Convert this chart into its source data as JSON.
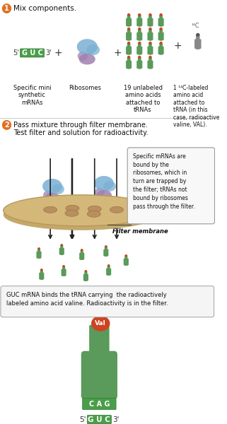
{
  "bg_color": "#ffffff",
  "step1_text": "Mix components.",
  "step2_text": "Pass mixture through filter membrane.\nTest filter and solution for radioactivity.",
  "label1": "Specific mini\nsynthetic\nmRNAs",
  "label2": "Ribosomes",
  "label3": "19 unlabeled\namino acids\nattached to\ntRNAs",
  "label4": "1 ¹⁴C-labeled\namino acid\nattached to\ntRNA (in this\ncase, radioactive\nvaline, VAL).",
  "callout_text": "Specific mRNAs are\nbound by the\nribosomes, which in\nturn are trapped by\nthe filter; tRNAs not\nbound by ribosomes\npass through the filter.",
  "filter_label": "Filter membrane",
  "bottom_text": "GUC mRNA binds the tRNA carrying  the radioactively\nlabeled amino acid valine. Radioactivity is in the filter.",
  "guc_bg": "#4a9e4a",
  "trna_green": "#6aaa6a",
  "trna_body_green": "#5a9a5a",
  "ribosome_blue": "#7ab0d4",
  "ribosome_purple": "#a080b0",
  "filter_color": "#d4b87a",
  "filter_shadow": "#c4a86a",
  "filter_hole": "#b89060",
  "filter_hole_edge": "#a07040",
  "arrow_color": "#222222",
  "orange_red": "#cc4422",
  "step_circle_color": "#e07020",
  "divider_color": "#cccccc",
  "callout_bg": "#f8f8f8",
  "callout_edge": "#999999",
  "box_bg": "#f5f5f5",
  "box_edge": "#aaaaaa",
  "dark_trna": "#888888",
  "dark_aa": "#555555"
}
